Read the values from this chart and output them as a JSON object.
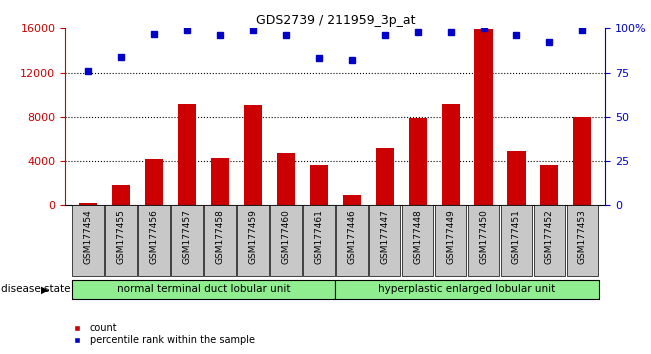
{
  "title": "GDS2739 / 211959_3p_at",
  "samples": [
    "GSM177454",
    "GSM177455",
    "GSM177456",
    "GSM177457",
    "GSM177458",
    "GSM177459",
    "GSM177460",
    "GSM177461",
    "GSM177446",
    "GSM177447",
    "GSM177448",
    "GSM177449",
    "GSM177450",
    "GSM177451",
    "GSM177452",
    "GSM177453"
  ],
  "counts": [
    200,
    1800,
    4200,
    9200,
    4300,
    9100,
    4700,
    3600,
    900,
    5200,
    7900,
    9200,
    15900,
    4900,
    3600,
    8000
  ],
  "percentiles": [
    76,
    84,
    97,
    99,
    96,
    99,
    96,
    83,
    82,
    96,
    98,
    98,
    100,
    96,
    92,
    99
  ],
  "group1_label": "normal terminal duct lobular unit",
  "group2_label": "hyperplastic enlarged lobular unit",
  "group1_count": 8,
  "group2_count": 8,
  "bar_color": "#cc0000",
  "dot_color": "#0000cc",
  "ylim_left": [
    0,
    16000
  ],
  "yticks_left": [
    0,
    4000,
    8000,
    12000,
    16000
  ],
  "ylim_right": [
    0,
    100
  ],
  "yticks_right": [
    0,
    25,
    50,
    75,
    100
  ],
  "grid_values": [
    4000,
    8000,
    12000
  ],
  "disease_state_label": "disease state",
  "legend_count_label": "count",
  "legend_pct_label": "percentile rank within the sample",
  "bg_color": "#ffffff",
  "group_bg_color": "#90ee90",
  "xtick_bg_color": "#c8c8c8",
  "bar_width": 0.55,
  "dot_size": 5
}
